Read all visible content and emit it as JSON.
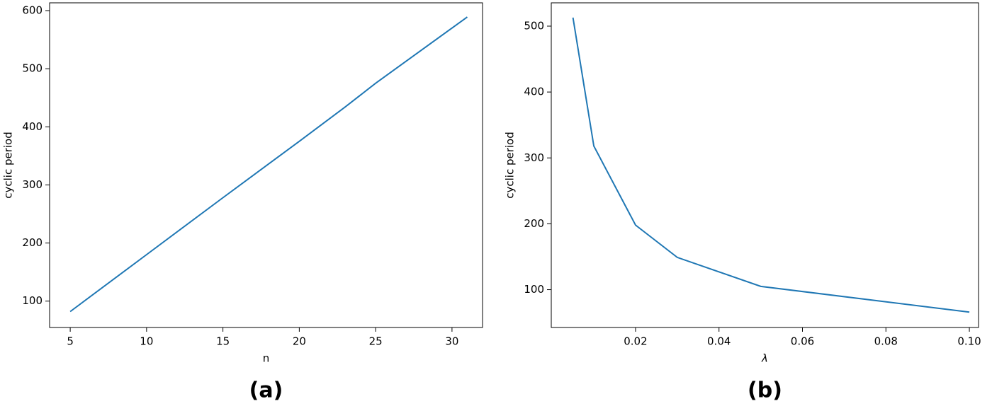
{
  "chart_data": [
    {
      "type": "line",
      "title": "(a)",
      "x_label": "n",
      "y_label": "cyclic period",
      "x": [
        5,
        10,
        15,
        20,
        23,
        25,
        31
      ],
      "values": [
        82,
        180,
        278,
        375,
        434,
        475,
        589
      ],
      "color": "#1f77b4",
      "xlim": [
        3.65,
        32
      ],
      "xticks": [
        5,
        10,
        15,
        20,
        25,
        30
      ],
      "ylim": [
        54.6,
        613.4
      ],
      "yticks": [
        100,
        200,
        300,
        400,
        500,
        600
      ]
    },
    {
      "type": "line",
      "title": "(b)",
      "x_label": "λ",
      "y_label": "cyclic period",
      "x": [
        0.005,
        0.01,
        0.02,
        0.03,
        0.05,
        0.1
      ],
      "values": [
        513,
        318,
        198,
        149,
        105,
        66
      ],
      "color": "#1f77b4",
      "xlim": [
        -0.0002,
        0.1022
      ],
      "xticks": [
        0.02,
        0.04,
        0.06,
        0.08,
        {
          "value": 0.1,
          "label": "0.10"
        }
      ],
      "ylim": [
        42.6,
        535.4
      ],
      "yticks": [
        100,
        200,
        300,
        400,
        500
      ]
    }
  ]
}
